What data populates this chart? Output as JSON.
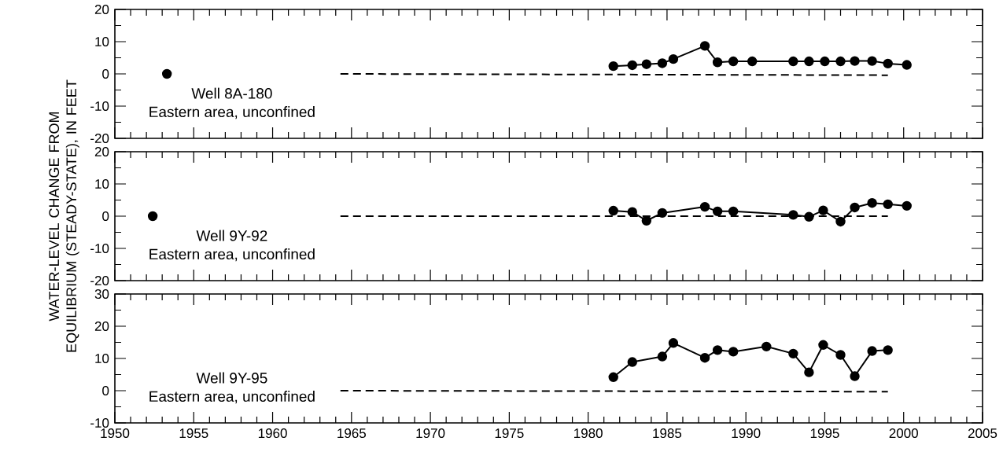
{
  "chart_data": [
    {
      "type": "line",
      "xlim": [
        1950,
        2005
      ],
      "ylim": [
        -20,
        20
      ],
      "xticks": [
        1950,
        1955,
        1960,
        1965,
        1970,
        1975,
        1980,
        1985,
        1990,
        1995,
        2000,
        2005
      ],
      "yticks": [
        -20,
        -10,
        0,
        10,
        20
      ],
      "tick_labels": "y",
      "annotations": [
        "Well 8A-180",
        "Eastern area, unconfined"
      ],
      "series": [
        {
          "color": "#000000",
          "marker": "none",
          "line_style": "dashed",
          "x": [
            1964.3,
            1999.0
          ],
          "values": [
            0,
            -0.4
          ]
        },
        {
          "type": "scatter",
          "color": "#000000",
          "marker": "circle",
          "x": [
            1953.3
          ],
          "values": [
            0
          ]
        },
        {
          "color": "#000000",
          "marker": "circle",
          "line_style": "solid",
          "x": [
            1981.6,
            1982.8,
            1983.7,
            1984.7,
            1985.4,
            1987.4,
            1988.2,
            1989.2,
            1990.4,
            1993.0,
            1994.0,
            1995.0,
            1996.0,
            1996.9,
            1998.0,
            1999.0,
            2000.2
          ],
          "values": [
            2.4,
            2.7,
            3.0,
            3.3,
            4.6,
            8.7,
            3.6,
            3.9,
            3.9,
            3.9,
            3.9,
            3.9,
            3.9,
            4.0,
            4.0,
            3.2,
            2.8
          ]
        }
      ]
    },
    {
      "type": "line",
      "xlim": [
        1950,
        2005
      ],
      "ylim": [
        -20,
        20
      ],
      "xticks": [
        1950,
        1955,
        1960,
        1965,
        1970,
        1975,
        1980,
        1985,
        1990,
        1995,
        2000,
        2005
      ],
      "yticks": [
        -20,
        -10,
        0,
        10,
        20
      ],
      "tick_labels": "y",
      "ylabel": "WATER-LEVEL CHANGE FROM EQUILIBRIUM (STEADY-STATE), IN FEET",
      "annotations": [
        "Well 9Y-92",
        "Eastern area, unconfined"
      ],
      "series": [
        {
          "color": "#000000",
          "marker": "none",
          "line_style": "dashed",
          "x": [
            1964.3,
            1999.0
          ],
          "values": [
            0,
            0
          ]
        },
        {
          "type": "scatter",
          "color": "#000000",
          "marker": "circle",
          "x": [
            1952.4
          ],
          "values": [
            0
          ]
        },
        {
          "color": "#000000",
          "marker": "circle",
          "line_style": "solid",
          "x": [
            1981.6,
            1982.8,
            1983.7,
            1984.7,
            1987.4,
            1988.2,
            1989.2,
            1993.0,
            1994.0,
            1994.9,
            1996.0,
            1996.9,
            1998.0,
            1999.0,
            2000.2
          ],
          "values": [
            1.7,
            1.3,
            -1.4,
            1.0,
            2.9,
            1.5,
            1.5,
            0.4,
            -0.2,
            1.8,
            -1.7,
            2.7,
            4.1,
            3.7,
            3.2
          ]
        }
      ]
    },
    {
      "type": "line",
      "xlim": [
        1950,
        2005
      ],
      "ylim": [
        -10,
        30
      ],
      "xticks": [
        1950,
        1955,
        1960,
        1965,
        1970,
        1975,
        1980,
        1985,
        1990,
        1995,
        2000,
        2005
      ],
      "yticks": [
        -10,
        0,
        10,
        20,
        30
      ],
      "annotations": [
        "Well 9Y-95",
        "Eastern area, unconfined"
      ],
      "series": [
        {
          "color": "#000000",
          "marker": "none",
          "line_style": "dashed",
          "x": [
            1964.3,
            1999.0
          ],
          "values": [
            0,
            -0.3
          ]
        },
        {
          "color": "#000000",
          "marker": "circle",
          "line_style": "solid",
          "x": [
            1981.6,
            1982.8,
            1984.7,
            1985.4,
            1987.4,
            1988.2,
            1989.2,
            1991.3,
            1993.0,
            1994.0,
            1994.9,
            1996.0,
            1996.9,
            1998.0,
            1999.0
          ],
          "values": [
            4.2,
            8.9,
            10.6,
            14.8,
            10.2,
            12.6,
            12.1,
            13.7,
            11.5,
            5.7,
            14.2,
            11.1,
            4.5,
            12.3,
            12.6
          ]
        }
      ]
    }
  ]
}
